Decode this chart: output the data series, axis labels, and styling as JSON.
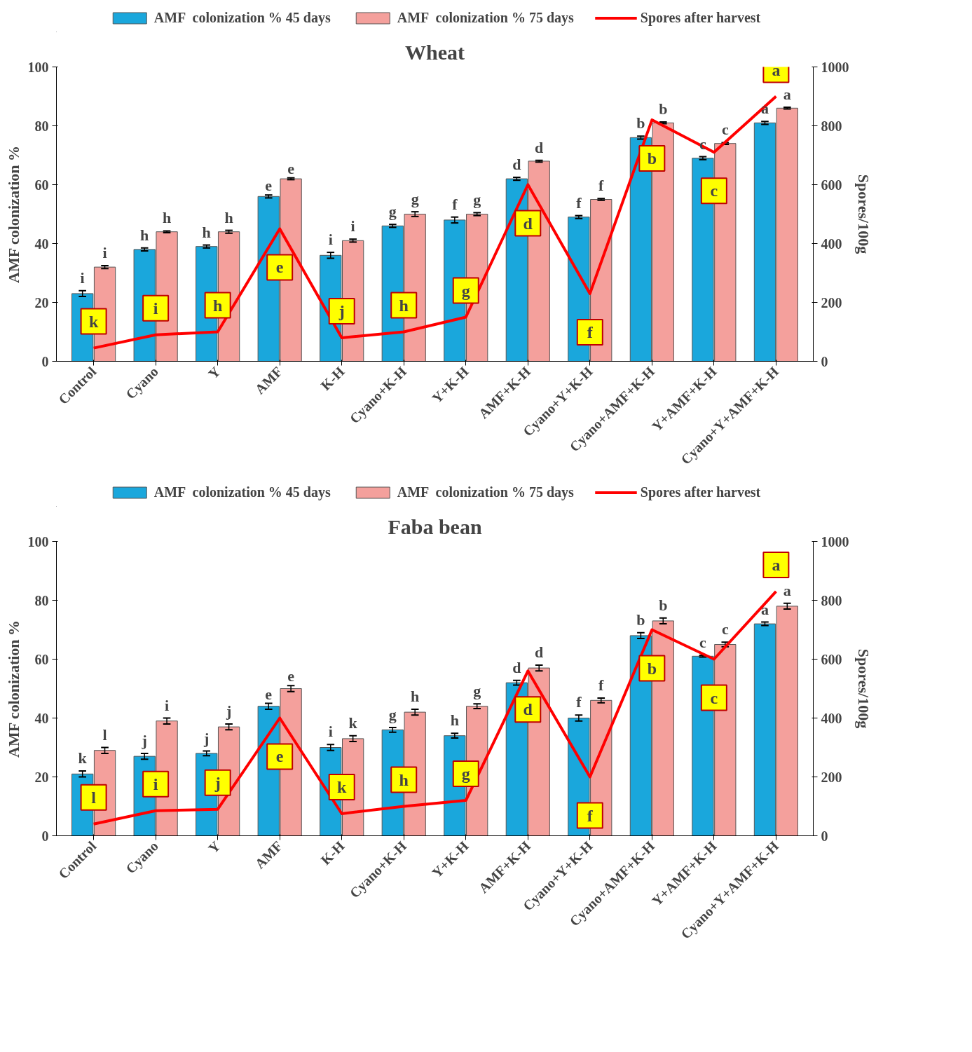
{
  "chart_data": [
    {
      "type": "bar",
      "title": "Wheat",
      "ylabel": "AMF colonization %",
      "y2label": "Spores/100g",
      "legend": "top",
      "grid": false,
      "categories": [
        "Control",
        "Cyano",
        "Y",
        "AMF",
        "K-H",
        "Cyano+K-H",
        "Y+K-H",
        "AMF+K-H",
        "Cyano+Y+K-H",
        "Cyano+AMF+K-H",
        "Y+AMF+K-H",
        "Cyano+Y+AMF+K-H"
      ],
      "ylim": [
        0,
        100
      ],
      "yticks": [
        0,
        20,
        40,
        60,
        80,
        100
      ],
      "y2lim": [
        0,
        1000
      ],
      "y2ticks": [
        0,
        200,
        400,
        600,
        800,
        1000
      ],
      "series": [
        {
          "name": "AMF  colonization % 45 days",
          "color": "#1aa7dc",
          "values": [
            23,
            38,
            39,
            56,
            36,
            46,
            48,
            62,
            49,
            76,
            69,
            81
          ],
          "errors": [
            1,
            0.5,
            0.5,
            0.5,
            1,
            0.5,
            1,
            0.5,
            0.5,
            0.5,
            0.5,
            0.5
          ],
          "value_labels": [
            "i",
            "h",
            "h",
            "e",
            "i",
            "g",
            "f",
            "d",
            "f",
            "b",
            "c",
            "a"
          ]
        },
        {
          "name": "AMF  colonization % 75 days",
          "color": "#f4a09c",
          "values": [
            32,
            44,
            44,
            62,
            41,
            50,
            50,
            68,
            55,
            81,
            74,
            86
          ],
          "errors": [
            0.5,
            0.3,
            0.5,
            0.3,
            0.5,
            0.8,
            0.5,
            0.3,
            0.3,
            0.3,
            0.3,
            0.3
          ],
          "value_labels": [
            "i",
            "h",
            "h",
            "e",
            "i",
            "g",
            "g",
            "d",
            "f",
            "b",
            "c",
            "a"
          ]
        },
        {
          "name": "Spores after harvest",
          "type": "line",
          "axis": "y2",
          "color": "#ff0000",
          "values": [
            45,
            90,
            100,
            450,
            80,
            100,
            150,
            600,
            230,
            820,
            710,
            900
          ],
          "value_labels": [
            "k",
            "i",
            "h",
            "e",
            "j",
            "h",
            "g",
            "d",
            "f",
            "b",
            "c",
            "a"
          ]
        }
      ]
    },
    {
      "type": "bar",
      "title": "Faba bean",
      "ylabel": "AMF colonization %",
      "y2label": "Spores/100g",
      "legend": "top",
      "grid": false,
      "categories": [
        "Control",
        "Cyano",
        "Y",
        "AMF",
        "K-H",
        "Cyano+K-H",
        "Y+K-H",
        "AMF+K-H",
        "Cyano+Y+K-H",
        "Cyano+AMF+K-H",
        "Y+AMF+K-H",
        "Cyano+Y+AMF+K-H"
      ],
      "ylim": [
        0,
        100
      ],
      "yticks": [
        0,
        20,
        40,
        60,
        80,
        100
      ],
      "y2lim": [
        0,
        1000
      ],
      "y2ticks": [
        0,
        200,
        400,
        600,
        800,
        1000
      ],
      "series": [
        {
          "name": "AMF  colonization % 45 days",
          "color": "#1aa7dc",
          "values": [
            21,
            27,
            28,
            44,
            30,
            36,
            34,
            52,
            40,
            68,
            61,
            72
          ],
          "errors": [
            1,
            1,
            0.8,
            1,
            1,
            0.8,
            0.8,
            0.8,
            1,
            1,
            0.3,
            0.6
          ],
          "value_labels": [
            "k",
            "j",
            "j",
            "e",
            "i",
            "g",
            "h",
            "d",
            "f",
            "b",
            "c",
            "a"
          ]
        },
        {
          "name": "AMF  colonization % 75 days",
          "color": "#f4a09c",
          "values": [
            29,
            39,
            37,
            50,
            33,
            42,
            44,
            57,
            46,
            73,
            65,
            78
          ],
          "errors": [
            1,
            1,
            1,
            1,
            1,
            1,
            0.8,
            1,
            0.8,
            1,
            0.8,
            1
          ],
          "value_labels": [
            "l",
            "i",
            "j",
            "e",
            "k",
            "h",
            "g",
            "d",
            "f",
            "b",
            "c",
            "a"
          ]
        },
        {
          "name": "Spores after harvest",
          "type": "line",
          "axis": "y2",
          "color": "#ff0000",
          "values": [
            40,
            85,
            90,
            400,
            75,
            100,
            120,
            560,
            200,
            700,
            600,
            830
          ],
          "value_labels": [
            "l",
            "i",
            "j",
            "e",
            "k",
            "h",
            "g",
            "d",
            "f",
            "b",
            "c",
            "a"
          ]
        }
      ]
    }
  ]
}
